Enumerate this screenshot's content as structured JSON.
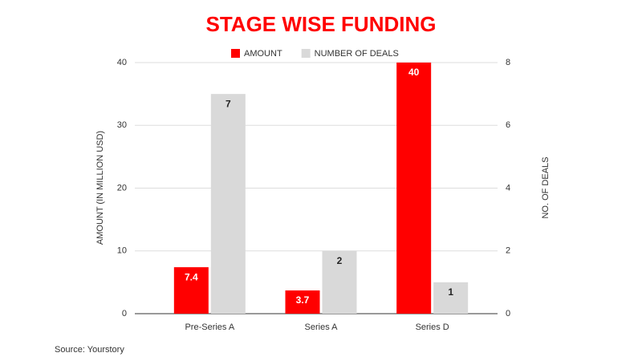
{
  "chart_data": {
    "type": "bar",
    "title": "STAGE WISE FUNDING",
    "categories": [
      "Pre-Series A",
      "Series A",
      "Series D"
    ],
    "series": [
      {
        "name": "AMOUNT",
        "color": "#ff0000",
        "values": [
          7.4,
          3.7,
          40
        ]
      },
      {
        "name": "NUMBER OF DEALS",
        "color": "#d9d9d9",
        "values": [
          7,
          2,
          1
        ],
        "axis": "y2"
      }
    ],
    "ylabel": "AMOUNT (IN MILLION USD)",
    "y2label": "NO. OF DEALS",
    "ylim": [
      0,
      40
    ],
    "yticks": [
      0,
      10,
      20,
      30,
      40
    ],
    "y2lim": [
      0,
      8
    ],
    "y2ticks": [
      0,
      2,
      4,
      6,
      8
    ],
    "grid": true,
    "legend": "top",
    "source": "Source: Yourstory"
  }
}
